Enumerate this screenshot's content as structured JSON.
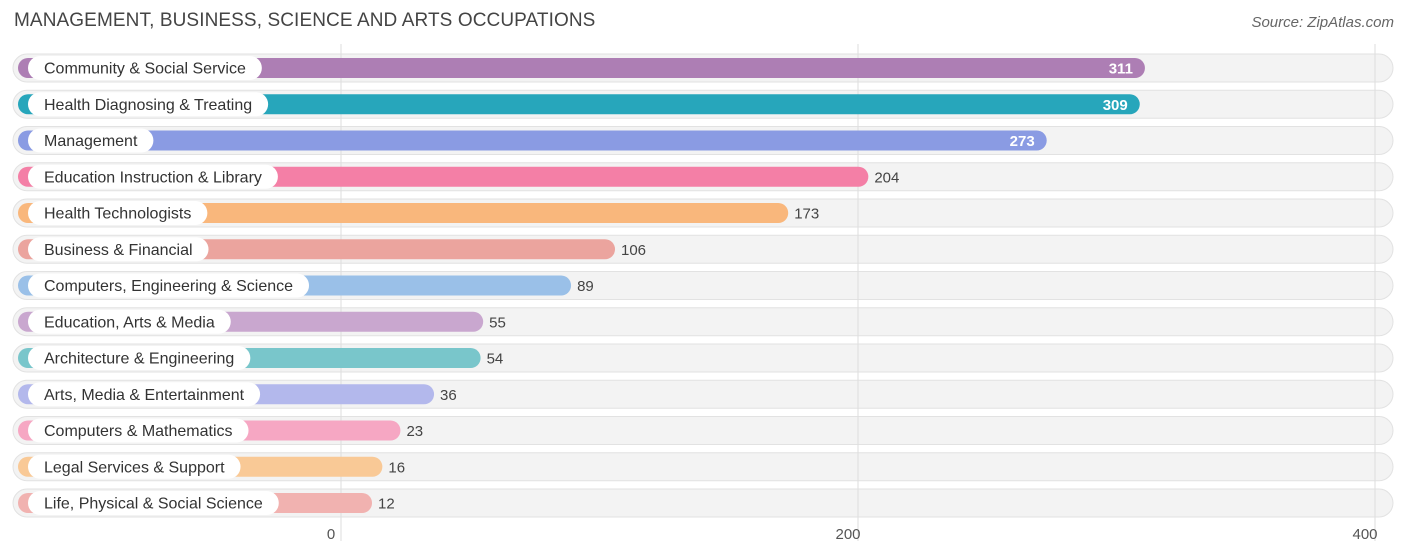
{
  "title": "MANAGEMENT, BUSINESS, SCIENCE AND ARTS OCCUPATIONS",
  "source": "Source: ZipAtlas.com",
  "chart_data": {
    "type": "bar",
    "orientation": "horizontal",
    "title": "MANAGEMENT, BUSINESS, SCIENCE AND ARTS OCCUPATIONS",
    "xlim": [
      0,
      400
    ],
    "xticks": [
      0,
      200,
      400
    ],
    "grid": true,
    "categories": [
      "Community & Social Service",
      "Health Diagnosing & Treating",
      "Management",
      "Education Instruction & Library",
      "Health Technologists",
      "Business & Financial",
      "Computers, Engineering & Science",
      "Education, Arts & Media",
      "Architecture & Engineering",
      "Arts, Media & Entertainment",
      "Computers & Mathematics",
      "Legal Services & Support",
      "Life, Physical & Social Science"
    ],
    "values": [
      311,
      309,
      273,
      204,
      173,
      106,
      89,
      55,
      54,
      36,
      23,
      16,
      12
    ],
    "colors": [
      "#ad7eb4",
      "#27a6bb",
      "#8a9be3",
      "#f47fa6",
      "#f9b77c",
      "#eba49e",
      "#9ac0e8",
      "#c9a7cf",
      "#79c6cb",
      "#b3b8ec",
      "#f6a7c3",
      "#f9c996",
      "#f1b2b0"
    ]
  }
}
